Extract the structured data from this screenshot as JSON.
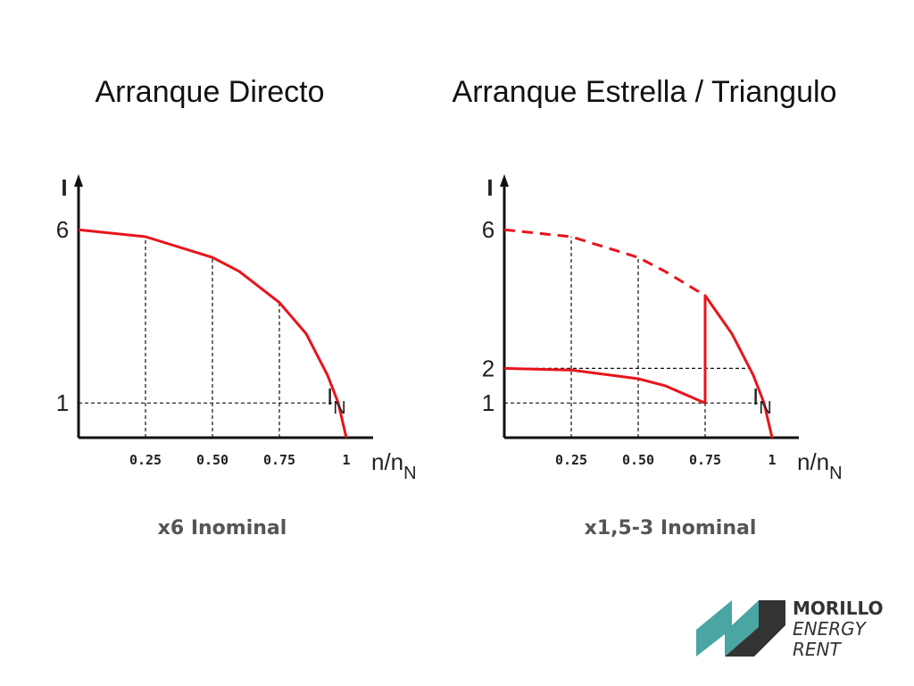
{
  "chart_data": [
    {
      "type": "line",
      "title": "Arranque Directo",
      "caption": "x6 Inominal",
      "y_label": "I",
      "x_label": {
        "text": "n/n",
        "sub": "N"
      },
      "annotation": {
        "text": "I",
        "sub": "N"
      },
      "xlim": [
        0,
        1.1
      ],
      "ylim": [
        0,
        7.5
      ],
      "xticks": [
        {
          "value": 0.25,
          "label": "0.25"
        },
        {
          "value": 0.5,
          "label": "0.50"
        },
        {
          "value": 0.75,
          "label": "0.75"
        },
        1
      ],
      "yticks": [
        1,
        6
      ],
      "series": [
        {
          "color": "#e8141b",
          "dash": false,
          "x": [
            0,
            0.25,
            0.5,
            0.6,
            0.75,
            0.85,
            0.93,
            0.97,
            1
          ],
          "values": [
            6,
            5.8,
            5.2,
            4.8,
            3.9,
            3.0,
            1.8,
            1,
            0
          ]
        }
      ]
    },
    {
      "type": "line",
      "title": "Arranque Estrella / Triangulo",
      "caption": "x1,5-3 Inominal",
      "y_label": "I",
      "x_label": {
        "text": "n/n",
        "sub": "N"
      },
      "annotation": {
        "text": "I",
        "sub": "N"
      },
      "xlim": [
        0,
        1.1
      ],
      "ylim": [
        0,
        7.5
      ],
      "xticks": [
        {
          "value": 0.25,
          "label": "0.25"
        },
        {
          "value": 0.5,
          "label": "0.50"
        },
        {
          "value": 0.75,
          "label": "0.75"
        },
        1
      ],
      "yticks": [
        1,
        2,
        6
      ],
      "series": [
        {
          "color": "#e8141b",
          "dash": true,
          "x": [
            0,
            0.25,
            0.5,
            0.6,
            0.75
          ],
          "values": [
            6,
            5.8,
            5.2,
            4.8,
            4.1
          ]
        },
        {
          "color": "#e8141b",
          "dash": false,
          "x": [
            0,
            0.25,
            0.5,
            0.6,
            0.75
          ],
          "values": [
            2,
            1.95,
            1.7,
            1.5,
            1
          ]
        },
        {
          "color": "#e8141b",
          "dash": false,
          "x": [
            0.75,
            0.75,
            0.85,
            0.93,
            0.97,
            1
          ],
          "values": [
            1,
            4.1,
            3.0,
            1.8,
            1,
            0
          ]
        }
      ]
    }
  ],
  "logo": {
    "lines": [
      "MORILLO",
      "ENERGY",
      "RENT"
    ]
  }
}
